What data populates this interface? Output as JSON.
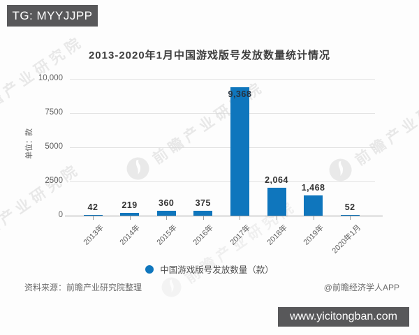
{
  "overlays": {
    "top_badge": "TG: MYYJJPP",
    "bottom_badge": "www.yicitongban.com"
  },
  "chart_data": {
    "type": "bar",
    "title": "2013-2020年1月中国游戏版号发放数量统计情况",
    "categories": [
      "2013年",
      "2014年",
      "2015年",
      "2016年",
      "2017年",
      "2018年",
      "2019年",
      "2020年1月"
    ],
    "values": [
      42,
      219,
      360,
      375,
      9368,
      2064,
      1468,
      52
    ],
    "value_labels": [
      "42",
      "219",
      "360",
      "375",
      "9,368",
      "2,064",
      "1,468",
      "52"
    ],
    "ylabel": "单位：款",
    "xlabel": "",
    "ylim": [
      0,
      10000
    ],
    "yticks": [
      0,
      2500,
      5000,
      7500,
      10000
    ],
    "ytick_labels": [
      "0",
      "2500",
      "5000",
      "7500",
      "10,000"
    ],
    "grid": true,
    "legend": "中国游戏版号发放数量（款）",
    "legend_position": "bottom",
    "bar_color": "#0F76BD"
  },
  "footer": {
    "source": "资料来源：前瞻产业研究院整理",
    "credit": "@前瞻经济学人APP"
  },
  "watermark": {
    "text": "前瞻产业研究院",
    "logo": "qianzhan-logo",
    "color": "#d7d7d7"
  }
}
